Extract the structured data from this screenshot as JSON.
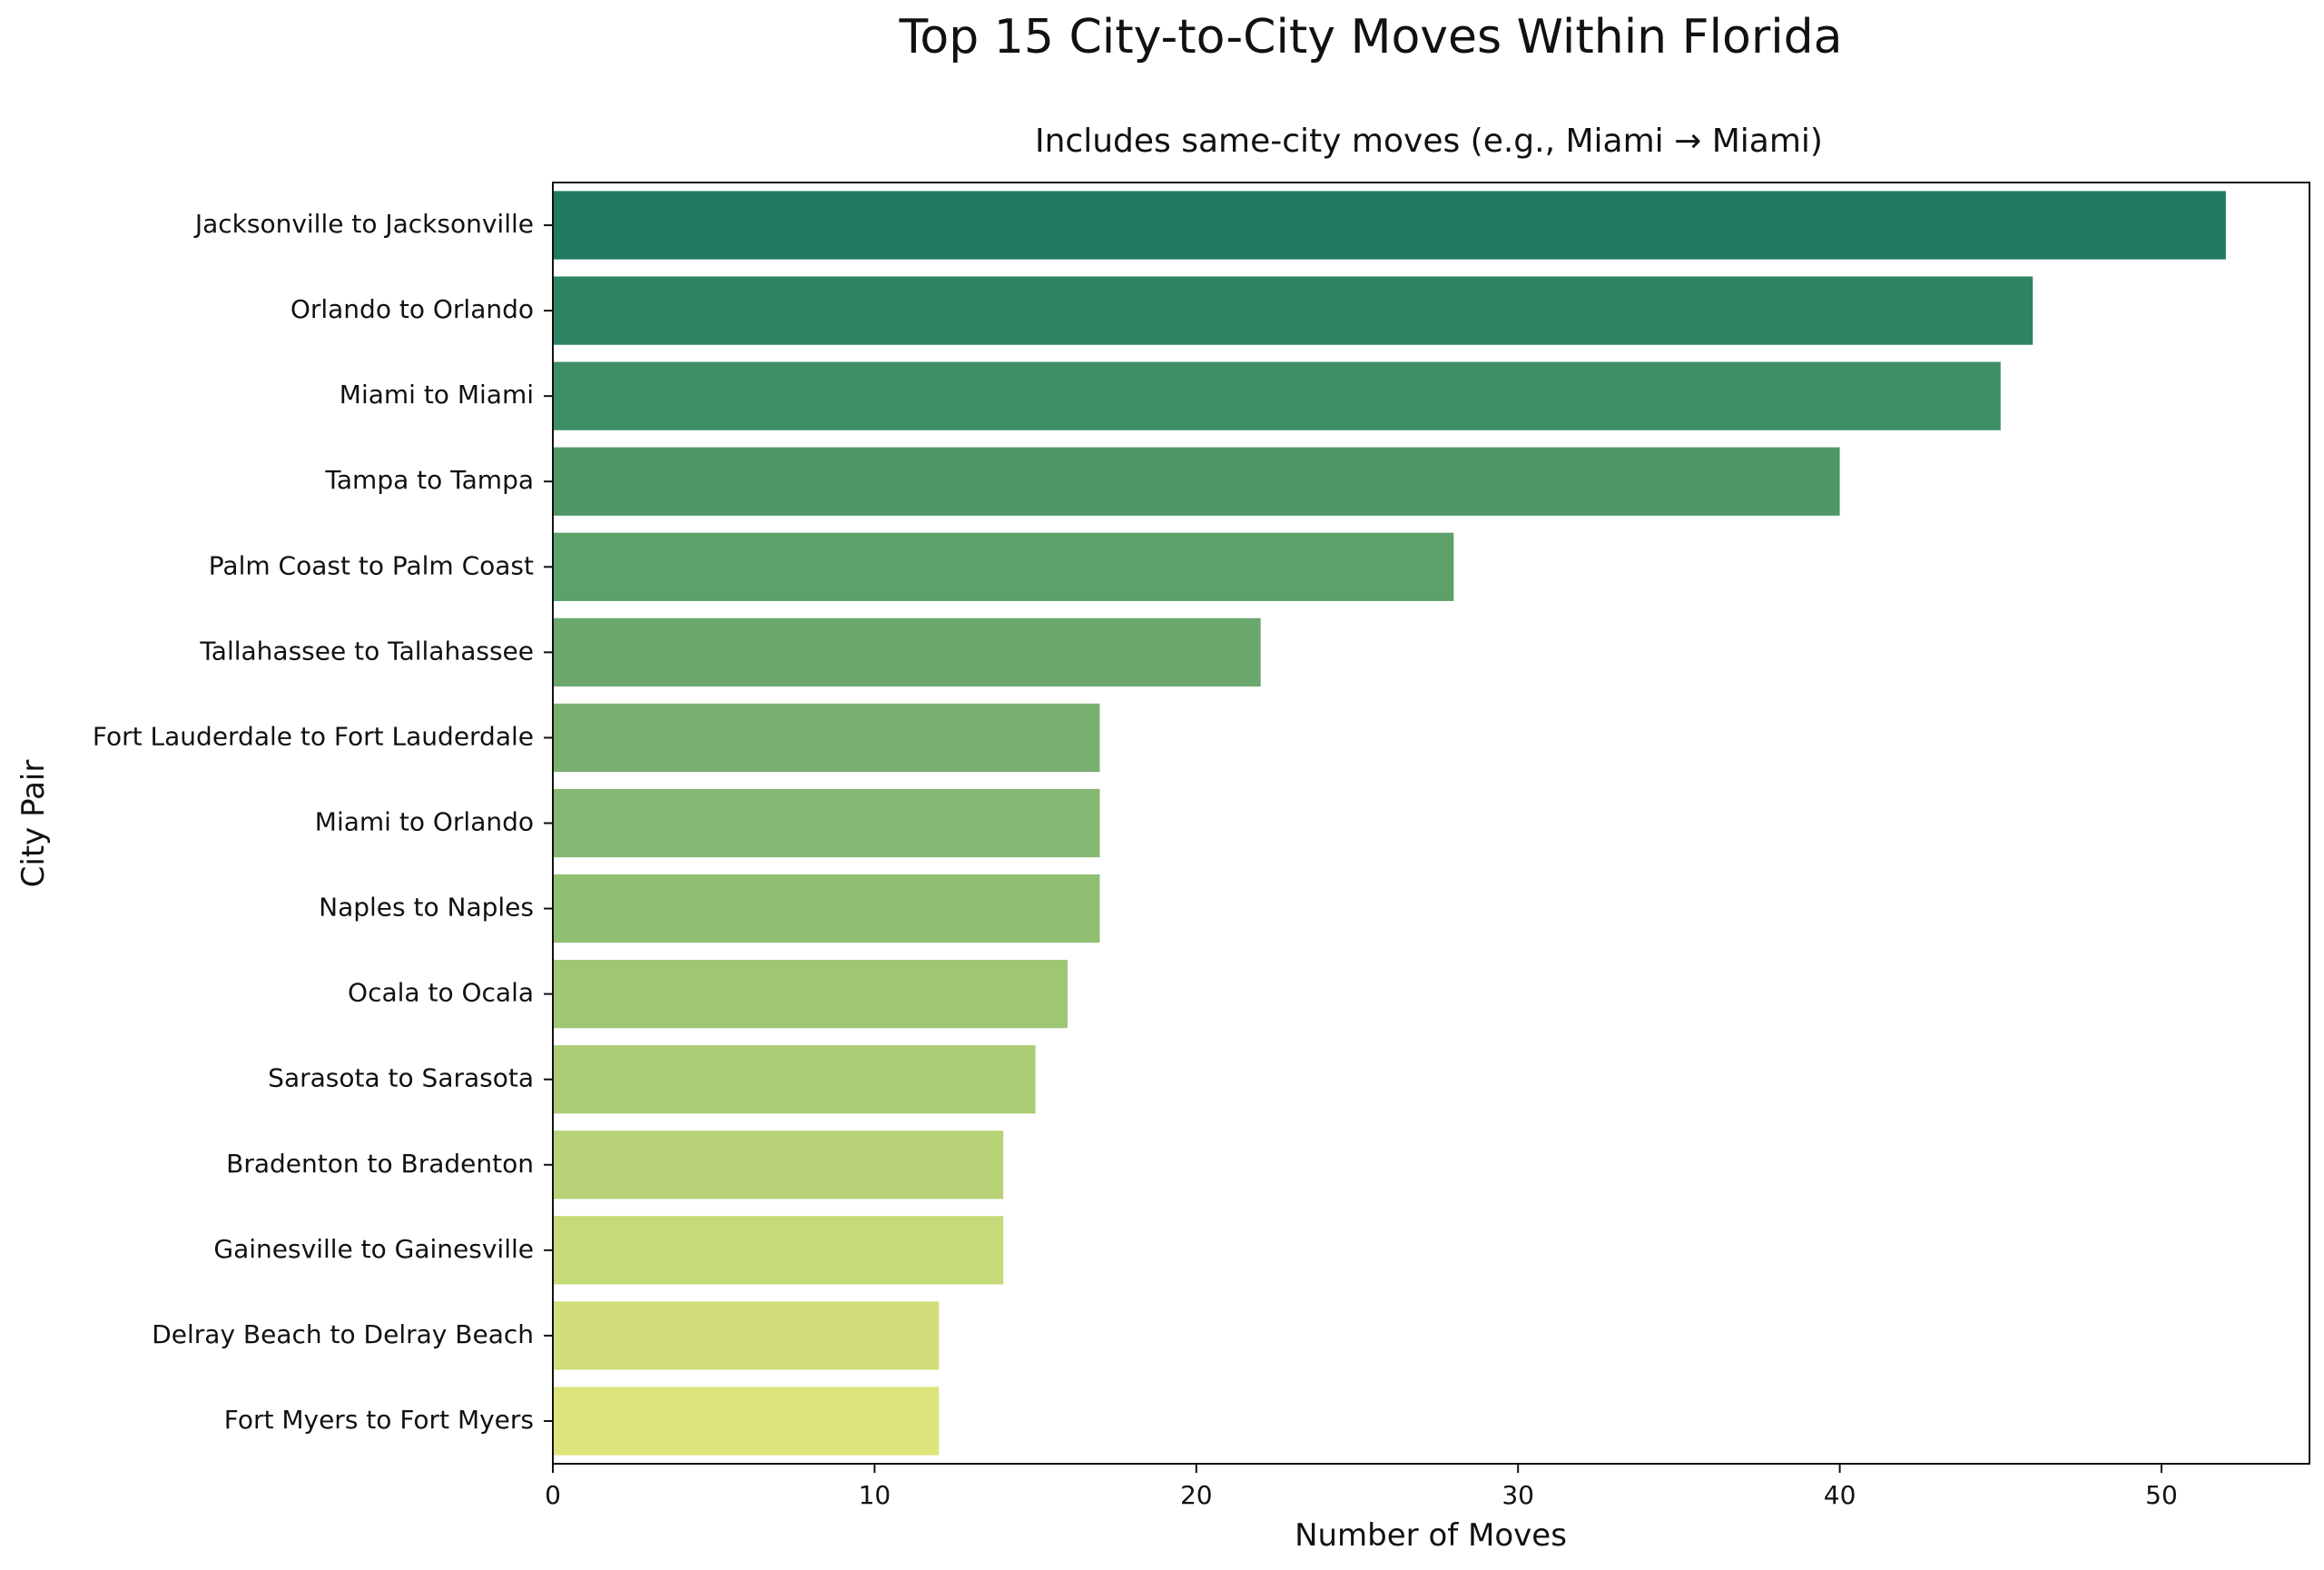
{
  "chart_data": {
    "type": "bar",
    "orientation": "horizontal",
    "title": "Top 15 City-to-City Moves Within Florida",
    "subtitle": "Includes same-city moves (e.g., Miami → Miami)",
    "xlabel": "Number of Moves",
    "ylabel": "City Pair",
    "xlim": [
      0,
      54.6
    ],
    "xticks": [
      0,
      10,
      20,
      30,
      40,
      50
    ],
    "grid": false,
    "categories": [
      "Jacksonville to Jacksonville",
      "Orlando to Orlando",
      "Miami to Miami",
      "Tampa to Tampa",
      "Palm Coast to Palm Coast",
      "Tallahassee to Tallahassee",
      "Fort Lauderdale to Fort Lauderdale",
      "Miami to Orlando",
      "Naples to Naples",
      "Ocala to Ocala",
      "Sarasota to Sarasota",
      "Bradenton to Bradenton",
      "Gainesville to Gainesville",
      "Delray Beach to Delray Beach",
      "Fort Myers to Fort Myers"
    ],
    "values": [
      52,
      46,
      45,
      40,
      28,
      22,
      17,
      17,
      17,
      16,
      15,
      14,
      14,
      12,
      12
    ],
    "colors": [
      "#1f7a61",
      "#2e8562",
      "#3e8e63",
      "#4e9666",
      "#5da06a",
      "#6ba86d",
      "#79b070",
      "#85b872",
      "#91bf72",
      "#9ec673",
      "#abcb75",
      "#b8d278",
      "#c5da79",
      "#d1de7b",
      "#dde47c"
    ]
  }
}
